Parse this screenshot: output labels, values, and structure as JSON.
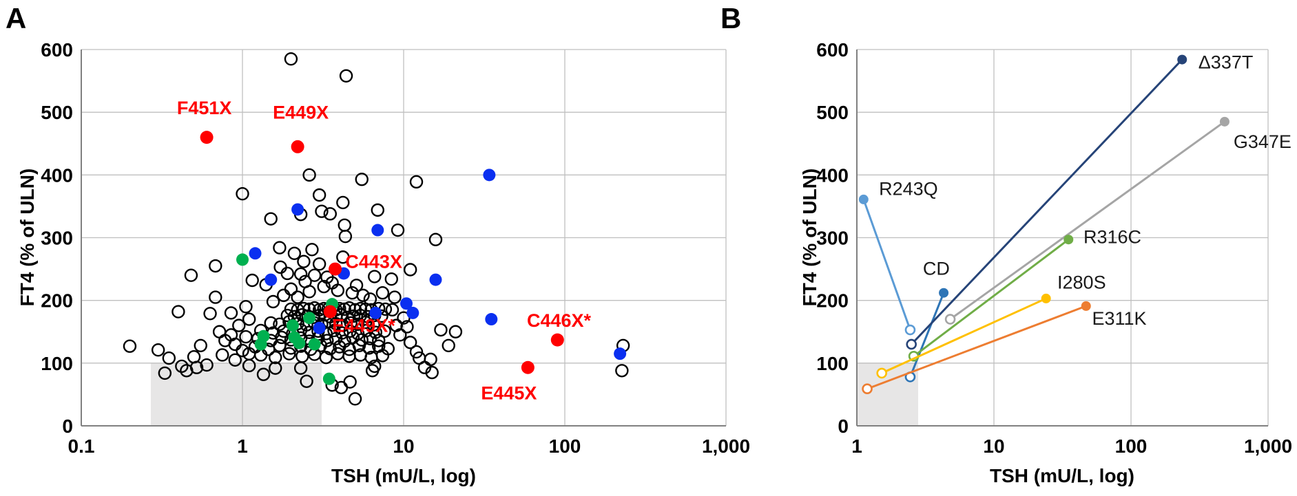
{
  "figure": {
    "panels": [
      {
        "letter": "A",
        "xlabel": "TSH (mU/L, log)",
        "ylabel": "FT4 (% of ULN)"
      },
      {
        "letter": "B",
        "xlabel": "TSH (mU/L, log)",
        "ylabel": "FT4 (% of ULN)"
      }
    ]
  },
  "colors": {
    "red": "#FF0000",
    "blue": "#0A2FF0",
    "green": "#00B050",
    "grid": "#BFBFBF",
    "axis": "#808080",
    "ref_box": "#E7E6E6",
    "open_stroke": "#000000"
  },
  "chart_data": [
    {
      "id": "A",
      "type": "scatter",
      "x_scale": "log",
      "xlabel": "TSH (mU/L, log)",
      "ylabel": "FT4 (% of ULN)",
      "x_tick_values": [
        0.1,
        1,
        10,
        100,
        1000
      ],
      "x_tick_labels": [
        "0.1",
        "1",
        "10",
        "100",
        "1,000"
      ],
      "ylim": [
        0,
        600
      ],
      "y_ticks": [
        0,
        100,
        200,
        300,
        400,
        500,
        600
      ],
      "grid": true,
      "reference_box": {
        "x1": 0.27,
        "x2": 3.1,
        "y1": 0,
        "y2": 100
      },
      "open_points": [
        [
          0.2,
          127
        ],
        [
          0.3,
          121
        ],
        [
          0.4,
          182
        ],
        [
          0.42,
          95
        ],
        [
          0.45,
          88
        ],
        [
          0.48,
          240
        ],
        [
          0.5,
          110
        ],
        [
          0.55,
          128
        ],
        [
          0.63,
          179
        ],
        [
          0.68,
          255
        ],
        [
          0.68,
          205
        ],
        [
          0.72,
          150
        ],
        [
          0.75,
          113
        ],
        [
          0.78,
          136
        ],
        [
          0.6,
          97
        ],
        [
          0.35,
          108
        ],
        [
          0.33,
          84
        ],
        [
          0.52,
          93
        ],
        [
          0.85,
          145
        ],
        [
          0.9,
          130
        ],
        [
          0.95,
          160
        ],
        [
          1.0,
          120
        ],
        [
          1.05,
          142
        ],
        [
          1.1,
          115
        ],
        [
          0.9,
          105
        ],
        [
          1.1,
          170
        ],
        [
          0.85,
          180
        ],
        [
          1.05,
          190
        ],
        [
          1.15,
          232
        ],
        [
          1.0,
          370
        ],
        [
          2.0,
          585
        ],
        [
          4.4,
          558
        ],
        [
          2.6,
          400
        ],
        [
          5.5,
          393
        ],
        [
          12,
          389
        ],
        [
          3.0,
          368
        ],
        [
          4.2,
          356
        ],
        [
          6.9,
          344
        ],
        [
          3.1,
          342
        ],
        [
          3.5,
          338
        ],
        [
          4.3,
          320
        ],
        [
          4.35,
          302
        ],
        [
          15.8,
          297
        ],
        [
          1.5,
          330
        ],
        [
          2.3,
          337
        ],
        [
          9.2,
          312
        ],
        [
          1.7,
          284
        ],
        [
          2.1,
          275
        ],
        [
          2.7,
          281
        ],
        [
          4.2,
          269
        ],
        [
          1.72,
          253
        ],
        [
          1.9,
          243
        ],
        [
          2.3,
          242
        ],
        [
          2.8,
          240
        ],
        [
          3.35,
          237
        ],
        [
          6.6,
          238
        ],
        [
          8.4,
          234
        ],
        [
          11,
          249
        ],
        [
          2.4,
          262
        ],
        [
          3.0,
          258
        ],
        [
          1.4,
          225
        ],
        [
          2.0,
          218
        ],
        [
          2.6,
          214
        ],
        [
          3.2,
          222
        ],
        [
          3.9,
          216
        ],
        [
          4.8,
          212
        ],
        [
          5.6,
          208
        ],
        [
          2.2,
          205
        ],
        [
          1.8,
          208
        ],
        [
          8.8,
          205
        ],
        [
          2.45,
          230
        ],
        [
          3.6,
          228
        ],
        [
          5.1,
          224
        ],
        [
          1.55,
          198
        ],
        [
          6.2,
          202
        ],
        [
          7.4,
          212
        ],
        [
          2.0,
          186
        ],
        [
          2.2,
          185
        ],
        [
          2.4,
          187
        ],
        [
          2.6,
          186
        ],
        [
          2.8,
          188
        ],
        [
          3.0,
          185
        ],
        [
          3.2,
          187
        ],
        [
          3.4,
          186
        ],
        [
          3.6,
          188
        ],
        [
          3.8,
          185
        ],
        [
          4.0,
          187
        ],
        [
          4.3,
          186
        ],
        [
          4.6,
          188
        ],
        [
          5.0,
          185
        ],
        [
          5.4,
          187
        ],
        [
          5.8,
          186
        ],
        [
          6.3,
          185
        ],
        [
          7.0,
          187
        ],
        [
          7.7,
          186
        ],
        [
          8.5,
          185
        ],
        [
          1.9,
          176
        ],
        [
          2.1,
          174
        ],
        [
          2.35,
          177
        ],
        [
          2.55,
          175
        ],
        [
          2.75,
          173
        ],
        [
          3.0,
          176
        ],
        [
          3.25,
          177
        ],
        [
          3.5,
          174
        ],
        [
          3.8,
          175
        ],
        [
          4.1,
          177
        ],
        [
          4.5,
          173
        ],
        [
          4.9,
          175
        ],
        [
          5.4,
          176
        ],
        [
          6.0,
          174
        ],
        [
          6.6,
          176
        ],
        [
          7.3,
          175
        ],
        [
          1.5,
          164
        ],
        [
          1.7,
          162
        ],
        [
          1.95,
          166
        ],
        [
          2.2,
          163
        ],
        [
          2.5,
          161
        ],
        [
          2.8,
          164
        ],
        [
          3.1,
          162
        ],
        [
          3.45,
          166
        ],
        [
          3.8,
          163
        ],
        [
          4.2,
          160
        ],
        [
          4.7,
          164
        ],
        [
          5.2,
          162
        ],
        [
          5.8,
          165
        ],
        [
          6.5,
          161
        ],
        [
          1.3,
          152
        ],
        [
          1.55,
          148
        ],
        [
          1.8,
          151
        ],
        [
          2.05,
          147
        ],
        [
          2.3,
          153
        ],
        [
          2.6,
          149
        ],
        [
          2.95,
          151
        ],
        [
          3.3,
          147
        ],
        [
          3.7,
          152
        ],
        [
          4.15,
          148
        ],
        [
          4.65,
          151
        ],
        [
          5.2,
          147
        ],
        [
          5.9,
          152
        ],
        [
          6.7,
          149
        ],
        [
          7.6,
          151
        ],
        [
          1.25,
          139
        ],
        [
          1.5,
          136
        ],
        [
          1.75,
          141
        ],
        [
          2.0,
          137
        ],
        [
          2.3,
          140
        ],
        [
          2.6,
          135
        ],
        [
          2.95,
          140
        ],
        [
          3.35,
          136
        ],
        [
          3.8,
          139
        ],
        [
          4.3,
          135
        ],
        [
          4.85,
          141
        ],
        [
          5.5,
          137
        ],
        [
          6.2,
          139
        ],
        [
          7.0,
          136
        ],
        [
          1.2,
          126
        ],
        [
          1.45,
          122
        ],
        [
          1.7,
          128
        ],
        [
          2.0,
          124
        ],
        [
          2.3,
          127
        ],
        [
          2.65,
          122
        ],
        [
          3.05,
          128
        ],
        [
          3.5,
          123
        ],
        [
          4.0,
          126
        ],
        [
          4.6,
          122
        ],
        [
          5.3,
          128
        ],
        [
          6.1,
          124
        ],
        [
          7.0,
          127
        ],
        [
          8.0,
          123
        ],
        [
          1.3,
          113
        ],
        [
          1.6,
          109
        ],
        [
          1.95,
          115
        ],
        [
          2.35,
          111
        ],
        [
          2.8,
          114
        ],
        [
          3.3,
          109
        ],
        [
          3.9,
          115
        ],
        [
          4.6,
          111
        ],
        [
          5.4,
          113
        ],
        [
          6.3,
          109
        ],
        [
          7.4,
          112
        ],
        [
          9,
          160
        ],
        [
          10,
          172
        ],
        [
          10.5,
          158
        ],
        [
          11,
          133
        ],
        [
          12,
          118
        ],
        [
          12.5,
          108
        ],
        [
          9.5,
          145
        ],
        [
          14.7,
          106
        ],
        [
          17,
          153
        ],
        [
          19,
          128
        ],
        [
          21,
          150
        ],
        [
          230,
          128
        ],
        [
          226,
          88
        ],
        [
          13.5,
          93
        ],
        [
          15,
          85
        ],
        [
          1.1,
          96
        ],
        [
          1.35,
          82
        ],
        [
          1.6,
          92
        ],
        [
          2.3,
          92
        ],
        [
          2.5,
          71
        ],
        [
          3.6,
          65
        ],
        [
          4.1,
          61
        ],
        [
          4.65,
          70
        ],
        [
          5.0,
          43
        ],
        [
          6.4,
          88
        ],
        [
          6.6,
          95
        ]
      ],
      "blue_points": [
        [
          1.2,
          275
        ],
        [
          1.5,
          233
        ],
        [
          2.2,
          345
        ],
        [
          3.0,
          156
        ],
        [
          4.25,
          243
        ],
        [
          6.7,
          180
        ],
        [
          6.9,
          312
        ],
        [
          10.4,
          195
        ],
        [
          11.4,
          180
        ],
        [
          15.8,
          233
        ],
        [
          34,
          400
        ],
        [
          35,
          170
        ],
        [
          220,
          115
        ]
      ],
      "green_points": [
        [
          1.0,
          265
        ],
        [
          1.35,
          143
        ],
        [
          1.3,
          130
        ],
        [
          2.05,
          160
        ],
        [
          2.1,
          141
        ],
        [
          2.25,
          132
        ],
        [
          2.6,
          172
        ],
        [
          2.8,
          130
        ],
        [
          3.6,
          194
        ],
        [
          3.45,
          75
        ]
      ],
      "red_labeled_points": [
        {
          "label": "F451X",
          "x": 0.6,
          "y": 460,
          "label_x": 0.58,
          "label_y": 497,
          "anchor": "middle"
        },
        {
          "label": "E449X",
          "x": 2.2,
          "y": 445,
          "label_x": 2.3,
          "label_y": 490,
          "anchor": "middle"
        },
        {
          "label": "C443X",
          "x": 3.76,
          "y": 250,
          "label_x": 4.35,
          "label_y": 252,
          "anchor": "start"
        },
        {
          "label": "E449X*",
          "x": 3.5,
          "y": 182,
          "label_x": 3.6,
          "label_y": 150,
          "anchor": "start"
        },
        {
          "label": "C446X*",
          "x": 90,
          "y": 137,
          "label_x": 92,
          "label_y": 158,
          "anchor": "middle"
        },
        {
          "label": "E445X",
          "x": 59,
          "y": 93,
          "label_x": 45,
          "label_y": 42,
          "anchor": "middle"
        }
      ]
    },
    {
      "id": "B",
      "type": "paired-line",
      "x_scale": "log",
      "xlabel": "TSH (mU/L, log)",
      "ylabel": "FT4 (% of ULN)",
      "x_tick_values": [
        1,
        10,
        100,
        1000
      ],
      "x_tick_labels": [
        "1",
        "10",
        "100",
        "1,000"
      ],
      "ylim": [
        0,
        600
      ],
      "y_ticks": [
        0,
        100,
        200,
        300,
        400,
        500,
        600
      ],
      "grid": true,
      "reference_box": {
        "x1": 1,
        "x2": 2.8,
        "y1": 0,
        "y2": 100
      },
      "series": [
        {
          "name": "R243Q",
          "color": "#5B9BD5",
          "open": {
            "x": 2.45,
            "y": 153
          },
          "filled": {
            "x": 1.12,
            "y": 361
          },
          "label": {
            "text": "R243Q",
            "x": 1.45,
            "y": 368,
            "anchor": "start"
          }
        },
        {
          "name": "CD",
          "color": "#2E75B6",
          "open": {
            "x": 2.45,
            "y": 78
          },
          "filled": {
            "x": 4.3,
            "y": 212
          },
          "label": {
            "text": "CD",
            "x": 3.8,
            "y": 241,
            "anchor": "middle"
          }
        },
        {
          "name": "Δ337T",
          "color": "#264478",
          "open": {
            "x": 2.5,
            "y": 130
          },
          "filled": {
            "x": 236,
            "y": 584
          },
          "label": {
            "text": "Δ337T",
            "x": 310,
            "y": 570,
            "anchor": "start"
          }
        },
        {
          "name": "G347E",
          "color": "#A5A5A5",
          "open": {
            "x": 4.8,
            "y": 170
          },
          "filled": {
            "x": 482,
            "y": 485
          },
          "label": {
            "text": "G347E",
            "x": 560,
            "y": 443,
            "anchor": "start"
          }
        },
        {
          "name": "R316C",
          "color": "#70AD47",
          "open": {
            "x": 2.6,
            "y": 111
          },
          "filled": {
            "x": 35,
            "y": 297
          },
          "label": {
            "text": "R316C",
            "x": 45,
            "y": 291,
            "anchor": "start"
          }
        },
        {
          "name": "I280S",
          "color": "#FFC000",
          "open": {
            "x": 1.52,
            "y": 84
          },
          "filled": {
            "x": 24,
            "y": 203
          },
          "label": {
            "text": "I280S",
            "x": 29,
            "y": 219,
            "anchor": "start"
          }
        },
        {
          "name": "E311K",
          "color": "#ED7D31",
          "open": {
            "x": 1.19,
            "y": 59
          },
          "filled": {
            "x": 47,
            "y": 191
          },
          "label": {
            "text": "E311K",
            "x": 52,
            "y": 161,
            "anchor": "start"
          }
        }
      ]
    }
  ]
}
